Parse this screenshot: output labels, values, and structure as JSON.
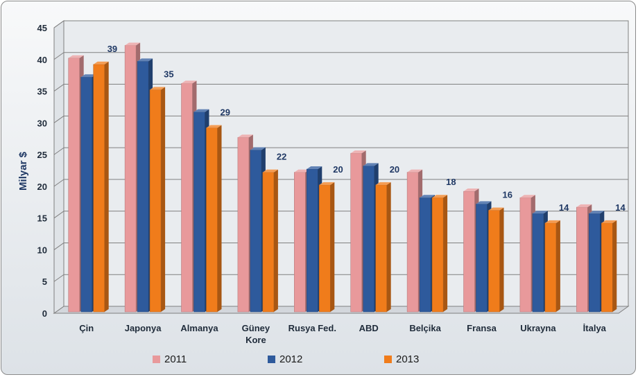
{
  "chart_data": {
    "type": "bar",
    "categories": [
      "Çin",
      "Japonya",
      "Almanya",
      "Güney Kore",
      "Rusya Fed.",
      "ABD",
      "Belçika",
      "Fransa",
      "Ukrayna",
      "İtalya"
    ],
    "category_lines": [
      [
        "Çin"
      ],
      [
        "Japonya"
      ],
      [
        "Almanya"
      ],
      [
        "Güney",
        "Kore"
      ],
      [
        "Rusya Fed."
      ],
      [
        "ABD"
      ],
      [
        "Belçika"
      ],
      [
        "Fransa"
      ],
      [
        "Ukrayna"
      ],
      [
        "İtalya"
      ]
    ],
    "series": [
      {
        "name": "2011",
        "color": "#e8999b",
        "values": [
          40,
          42,
          36,
          27.5,
          22,
          25,
          22,
          19,
          18,
          16.5
        ]
      },
      {
        "name": "2012",
        "color": "#2e5a9c",
        "values": [
          37,
          39.5,
          31.5,
          25.5,
          22.5,
          23,
          18,
          17,
          15.5,
          15.5
        ]
      },
      {
        "name": "2013",
        "color": "#f07c1b",
        "values": [
          39,
          35,
          29,
          22,
          20,
          20,
          18,
          16,
          14,
          14
        ]
      }
    ],
    "data_labels": [
      "39",
      "35",
      "29",
      "22",
      "20",
      "20",
      "18",
      "16",
      "14",
      "14"
    ],
    "ylabel": "Milyar $",
    "xlabel": "",
    "ylim": [
      0,
      45
    ],
    "yticks": [
      0,
      5,
      10,
      15,
      20,
      25,
      30,
      35,
      40,
      45
    ],
    "grid": true,
    "legend_position": "bottom"
  }
}
